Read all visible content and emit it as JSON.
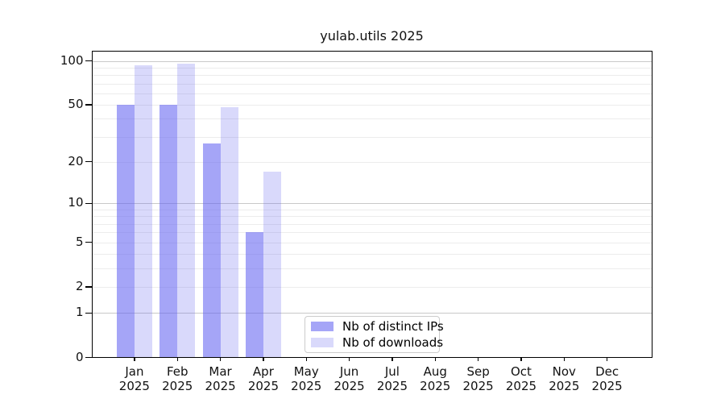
{
  "title": "yulab.utils 2025",
  "colors": {
    "bar_base_rgb": "95,95,240",
    "distinct_ips_alpha": 0.56,
    "downloads_alpha": 0.24,
    "grid_major": "#c9c9c9",
    "grid_minor": "#ececec",
    "axis": "#000000",
    "text": "#111111",
    "legend_border": "#cccccc"
  },
  "chart_data": {
    "type": "bar",
    "title": "yulab.utils 2025",
    "scale": "log1p",
    "categories": [
      "Jan",
      "Feb",
      "Mar",
      "Apr",
      "May",
      "Jun",
      "Jul",
      "Aug",
      "Sep",
      "Oct",
      "Nov",
      "Dec"
    ],
    "year_label": "2025",
    "series": [
      {
        "name": "Nb of distinct IPs",
        "values": [
          50,
          50,
          27,
          6,
          null,
          null,
          null,
          null,
          null,
          null,
          null,
          null
        ]
      },
      {
        "name": "Nb of downloads",
        "values": [
          93,
          96,
          48,
          17,
          null,
          null,
          null,
          null,
          null,
          null,
          null,
          null
        ]
      }
    ],
    "y_ticks": [
      0,
      1,
      2,
      5,
      10,
      20,
      50,
      100
    ],
    "y_minor_gridlines": [
      2,
      3,
      4,
      5,
      6,
      7,
      8,
      9,
      20,
      30,
      40,
      50,
      60,
      70,
      80,
      90
    ],
    "y_major_gridlines": [
      1,
      10,
      100
    ],
    "ylim": [
      0,
      117
    ],
    "legend_position": "lower center",
    "grid": true
  }
}
